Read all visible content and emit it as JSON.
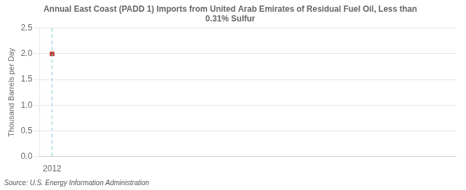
{
  "chart_data": {
    "type": "scatter",
    "title": "Annual East Coast (PADD 1) Imports from United Arab Emirates of Residual Fuel Oil, Less than\n0.31% Sulfur",
    "ylabel": "Thousand Barrels per Day",
    "source": "Source: U.S. Energy Information Administration",
    "x": [
      2012
    ],
    "values": [
      2.0
    ],
    "color": "#c0392b",
    "marker": "square",
    "xlim": [
      2011.7,
      2022
    ],
    "xticks": [
      2012
    ],
    "ylim": [
      0,
      2.5
    ],
    "yticks": [
      {
        "value": 0,
        "label": "0.0"
      },
      0.5,
      {
        "value": 1,
        "label": "1.0"
      },
      1.5,
      {
        "value": 2,
        "label": "2.0"
      },
      2.5
    ],
    "grid": true,
    "vline_x": 2012,
    "vline_color": "#7ec8d4"
  }
}
